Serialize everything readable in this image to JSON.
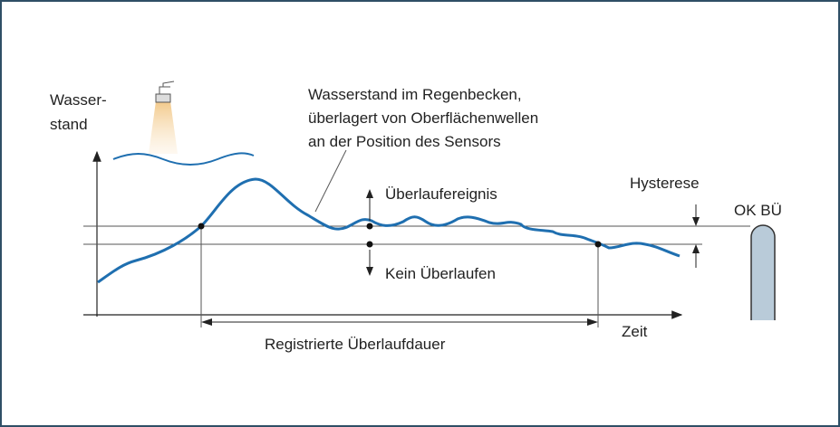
{
  "diagram": {
    "y_axis_label": [
      "Wasser-",
      "stand"
    ],
    "x_axis_label": "Zeit",
    "curve_note": [
      "Wasserstand im Regenbecken,",
      "überlagert von Oberflächenwellen",
      "an der Position des Sensors"
    ],
    "upper_label": "Überlaufereignis",
    "lower_label": "Kein Überlaufen",
    "hysteresis_label": "Hysterese",
    "weir_label": "OK BÜ",
    "duration_label": "Registrierte Überlaufdauer"
  }
}
